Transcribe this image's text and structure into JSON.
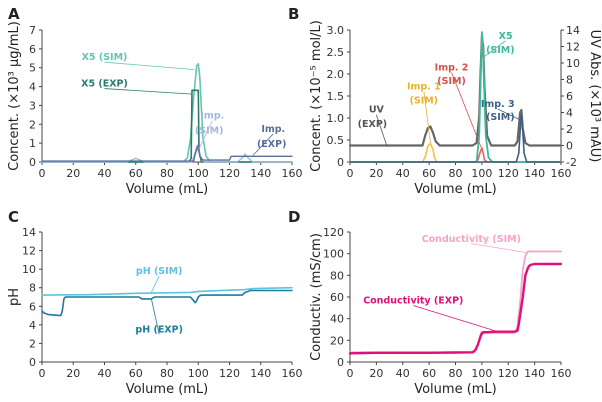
{
  "chart_data": [
    {
      "id": "A",
      "type": "line",
      "letter": "A",
      "xlabel": "Volume (mL)",
      "ylabel": "Concent. (×10³ µg/mL)",
      "xlim": [
        0,
        160
      ],
      "ylim": [
        0,
        7
      ],
      "xticks": [
        0,
        20,
        40,
        60,
        80,
        100,
        120,
        140,
        160
      ],
      "yticks": [
        0,
        1,
        2,
        3,
        4,
        5,
        6,
        7
      ],
      "series": [
        {
          "name": "X5 (SIM)",
          "color": "#62c6b0",
          "width": 1.6,
          "x": [
            0,
            90,
            93,
            95,
            97,
            99,
            100,
            101,
            102,
            103,
            105,
            108,
            160
          ],
          "y": [
            0,
            0,
            0.2,
            1.2,
            3.4,
            5.1,
            5.2,
            4.5,
            2.8,
            1.3,
            0.3,
            0,
            0
          ]
        },
        {
          "name": "X5 (EXP)",
          "color": "#2a7a6c",
          "width": 1.6,
          "x": [
            0,
            94,
            95.5,
            96,
            100,
            100.5,
            102,
            160
          ],
          "y": [
            0,
            0,
            0.2,
            3.8,
            3.8,
            0.6,
            0,
            0
          ]
        },
        {
          "name": "Imp. (SIM)",
          "color": "#a5b8da",
          "width": 1.4,
          "x": [
            0,
            54,
            58,
            60,
            62,
            66,
            96,
            98,
            99,
            100,
            102,
            104,
            125,
            128,
            130,
            132,
            135,
            160
          ],
          "y": [
            0,
            0,
            0.12,
            0.2,
            0.12,
            0,
            0,
            0.5,
            0.85,
            0.6,
            0.2,
            0,
            0,
            0.2,
            0.42,
            0.2,
            0,
            0
          ]
        },
        {
          "name": "Imp. (EXP)",
          "color": "#5a6f9c",
          "width": 1.4,
          "x": [
            0,
            97,
            98,
            100,
            101,
            103,
            120,
            121,
            133,
            160
          ],
          "y": [
            0.05,
            0.05,
            0.4,
            0.9,
            0.3,
            0.1,
            0.1,
            0.3,
            0.3,
            0.3
          ]
        }
      ],
      "annotations": [
        {
          "text": "X5 (SIM)",
          "color": "#62c6b0",
          "x": 40,
          "y": 5.4,
          "target_x": 97.5,
          "target_y": 4.9
        },
        {
          "text": "X5 (EXP)",
          "color": "#2a7a6c",
          "x": 40,
          "y": 4.0,
          "target_x": 96.2,
          "target_y": 3.6
        },
        {
          "text": "Imp.",
          "color": "#a5b8da",
          "x": 109,
          "y": 2.3,
          "target_x": 100.5,
          "target_y": 0.7
        },
        {
          "text": "(SIM)",
          "color": "#a5b8da",
          "x": 107,
          "y": 1.5
        },
        {
          "text": "Imp.",
          "color": "#5a6f9c",
          "x": 148,
          "y": 1.6,
          "target_x": 135,
          "target_y": 0.35
        },
        {
          "text": "(EXP)",
          "color": "#5a6f9c",
          "x": 147,
          "y": 0.8
        }
      ]
    },
    {
      "id": "B",
      "type": "line",
      "letter": "B",
      "xlabel": "Volume (mL)",
      "ylabel": "Concent. (×10⁻⁵ mol/L)",
      "y2label": "UV Abs. (×10³ mAU)",
      "xlim": [
        0,
        160
      ],
      "ylim": [
        0,
        3.0
      ],
      "y2lim": [
        -2,
        14
      ],
      "xticks": [
        0,
        20,
        40,
        60,
        80,
        100,
        120,
        140,
        160
      ],
      "yticks": [
        0,
        0.5,
        1.0,
        1.5,
        2.0,
        2.5,
        3.0
      ],
      "yticklabels": [
        "0",
        "0.5",
        "1.0",
        "1.5",
        "2.0",
        "2.5",
        "3.0"
      ],
      "y2ticks": [
        -2,
        0,
        2,
        4,
        6,
        8,
        10,
        12,
        14
      ],
      "series": [
        {
          "name": "UV (EXP)",
          "axis": "right",
          "color": "#666666",
          "width": 2.2,
          "x": [
            0,
            55,
            57,
            59,
            61,
            63,
            65,
            68,
            93,
            96,
            98,
            99,
            100,
            101,
            102,
            104,
            107,
            125,
            127,
            129,
            130,
            131,
            133,
            136,
            160
          ],
          "y": [
            0,
            0,
            1.2,
            2.1,
            2.3,
            1.5,
            0.5,
            0,
            0,
            0.3,
            3.5,
            9.0,
            13.2,
            12.0,
            7.0,
            1.2,
            0,
            0,
            0.5,
            4.0,
            4.3,
            2.0,
            0.3,
            0,
            0
          ]
        },
        {
          "name": "Imp. 1 (SIM)",
          "axis": "left",
          "color": "#f5c23d",
          "width": 1.6,
          "x": [
            0,
            55,
            57,
            59,
            61,
            63,
            64,
            66,
            160
          ],
          "y": [
            0,
            0,
            0.12,
            0.36,
            0.42,
            0.28,
            0.1,
            0,
            0
          ]
        },
        {
          "name": "Imp. 2 (SIM)",
          "axis": "left",
          "color": "#e06464",
          "width": 1.6,
          "x": [
            0,
            95,
            97,
            99,
            100,
            101,
            102,
            104,
            160
          ],
          "y": [
            0,
            0,
            0.05,
            0.25,
            0.32,
            0.2,
            0.05,
            0,
            0
          ]
        },
        {
          "name": "X5 (SIM)",
          "axis": "left",
          "color": "#3fb89b",
          "width": 1.8,
          "x": [
            0,
            96,
            98,
            99,
            100,
            101,
            102,
            103,
            105,
            108,
            160
          ],
          "y": [
            0,
            0,
            0.6,
            1.8,
            2.95,
            2.5,
            1.4,
            0.6,
            0.1,
            0,
            0
          ]
        },
        {
          "name": "Imp. 3 (SIM)",
          "axis": "left",
          "color": "#3f5f88",
          "width": 1.6,
          "x": [
            0,
            126,
            128,
            129,
            130,
            131,
            132,
            134,
            160
          ],
          "y": [
            0,
            0,
            0.2,
            0.7,
            1.08,
            0.7,
            0.2,
            0,
            0
          ]
        }
      ],
      "annotations": [
        {
          "text": "UV",
          "color": "#555555",
          "x": 20,
          "y": 1.12,
          "target_x": 28,
          "target_y": 0.36
        },
        {
          "text": "(EXP)",
          "color": "#555555",
          "x": 17,
          "y": 0.8
        },
        {
          "text": "Imp. 1",
          "color": "#e8b22a",
          "x": 56,
          "y": 1.65,
          "target_x": 61,
          "target_y": 0.44
        },
        {
          "text": "(SIM)",
          "color": "#e8b22a",
          "x": 56,
          "y": 1.33
        },
        {
          "text": "Imp. 2",
          "color": "#d84f4f",
          "x": 77,
          "y": 2.08,
          "target_x": 99.5,
          "target_y": 0.33
        },
        {
          "text": "(SIM)",
          "color": "#d84f4f",
          "x": 77,
          "y": 1.77
        },
        {
          "text": "X5",
          "color": "#3fb89b",
          "x": 118,
          "y": 2.8,
          "target_x": 102,
          "target_y": 2.4
        },
        {
          "text": "(SIM)",
          "color": "#3fb89b",
          "x": 114,
          "y": 2.48
        },
        {
          "text": "Imp. 3",
          "color": "#3f5f88",
          "x": 112,
          "y": 1.25,
          "target_x": 129.5,
          "target_y": 0.95
        },
        {
          "text": "(SIM)",
          "color": "#3f5f88",
          "x": 114,
          "y": 0.95
        }
      ]
    },
    {
      "id": "C",
      "type": "line",
      "letter": "C",
      "xlabel": "Volume (mL)",
      "ylabel": "pH",
      "xlim": [
        0,
        160
      ],
      "ylim": [
        0,
        14
      ],
      "xticks": [
        0,
        20,
        40,
        60,
        80,
        100,
        120,
        140,
        160
      ],
      "yticks": [
        0,
        2,
        4,
        6,
        8,
        10,
        12,
        14
      ],
      "series": [
        {
          "name": "pH (SIM)",
          "color": "#5cc3e0",
          "width": 1.6,
          "x": [
            0,
            30,
            60,
            95,
            100,
            130,
            135,
            160
          ],
          "y": [
            7.2,
            7.25,
            7.4,
            7.5,
            7.6,
            7.8,
            7.9,
            8.0
          ]
        },
        {
          "name": "pH (EXP)",
          "color": "#1a7d9c",
          "width": 1.6,
          "x": [
            0,
            1,
            4,
            12,
            13,
            14,
            15,
            62,
            64,
            70,
            72,
            95,
            97,
            98,
            99,
            100,
            101,
            103,
            128,
            130,
            132,
            133,
            160
          ],
          "y": [
            5.5,
            5.3,
            5.1,
            5.0,
            5.5,
            6.8,
            7.0,
            7.0,
            6.8,
            6.8,
            7.0,
            7.0,
            6.6,
            6.4,
            6.6,
            7.0,
            7.15,
            7.2,
            7.2,
            7.5,
            7.6,
            7.7,
            7.7
          ]
        }
      ],
      "annotations": [
        {
          "text": "pH (SIM)",
          "color": "#5cc3e0",
          "x": 75,
          "y": 9.5,
          "target_x": 70,
          "target_y": 7.5
        },
        {
          "text": "pH (EXP)",
          "color": "#1a7d9c",
          "x": 75,
          "y": 3.2,
          "target_x": 70,
          "target_y": 6.8
        }
      ]
    },
    {
      "id": "D",
      "type": "line",
      "letter": "D",
      "xlabel": "Volume (mL)",
      "ylabel": "Conductiv. (mS/cm)",
      "xlim": [
        0,
        160
      ],
      "ylim": [
        0,
        120
      ],
      "xticks": [
        0,
        20,
        40,
        60,
        80,
        100,
        120,
        140,
        160
      ],
      "yticks": [
        0,
        20,
        40,
        60,
        80,
        100,
        120
      ],
      "series": [
        {
          "name": "Conductivity (SIM)",
          "color": "#f5a3c8",
          "width": 1.8,
          "x": [
            0,
            94,
            96,
            98,
            100,
            102,
            125,
            127,
            129,
            131,
            133,
            135,
            160
          ],
          "y": [
            9,
            9,
            12,
            20,
            25,
            27,
            27,
            33,
            55,
            85,
            98,
            102,
            102
          ]
        },
        {
          "name": "Conductivity (EXP)",
          "color": "#e0107a",
          "width": 2.4,
          "x": [
            0,
            20,
            40,
            60,
            80,
            93,
            95,
            97,
            99,
            100,
            101,
            104,
            110,
            120,
            125,
            127,
            128,
            131,
            133,
            135,
            136,
            138,
            140,
            160
          ],
          "y": [
            8,
            8.5,
            8.5,
            8.5,
            8.8,
            9,
            11,
            16,
            24,
            27,
            27.5,
            27.5,
            28,
            28,
            28,
            29,
            35,
            60,
            80,
            87,
            89,
            90,
            90.5,
            90.5
          ]
        }
      ],
      "annotations": [
        {
          "text": "Conductivity (SIM)",
          "color": "#f5a3c8",
          "x": 92,
          "y": 111,
          "target_x": 134,
          "target_y": 101
        },
        {
          "text": "Conductivity (EXP)",
          "color": "#e0107a",
          "x": 48,
          "y": 54,
          "target_x": 112,
          "target_y": 28
        }
      ]
    }
  ]
}
